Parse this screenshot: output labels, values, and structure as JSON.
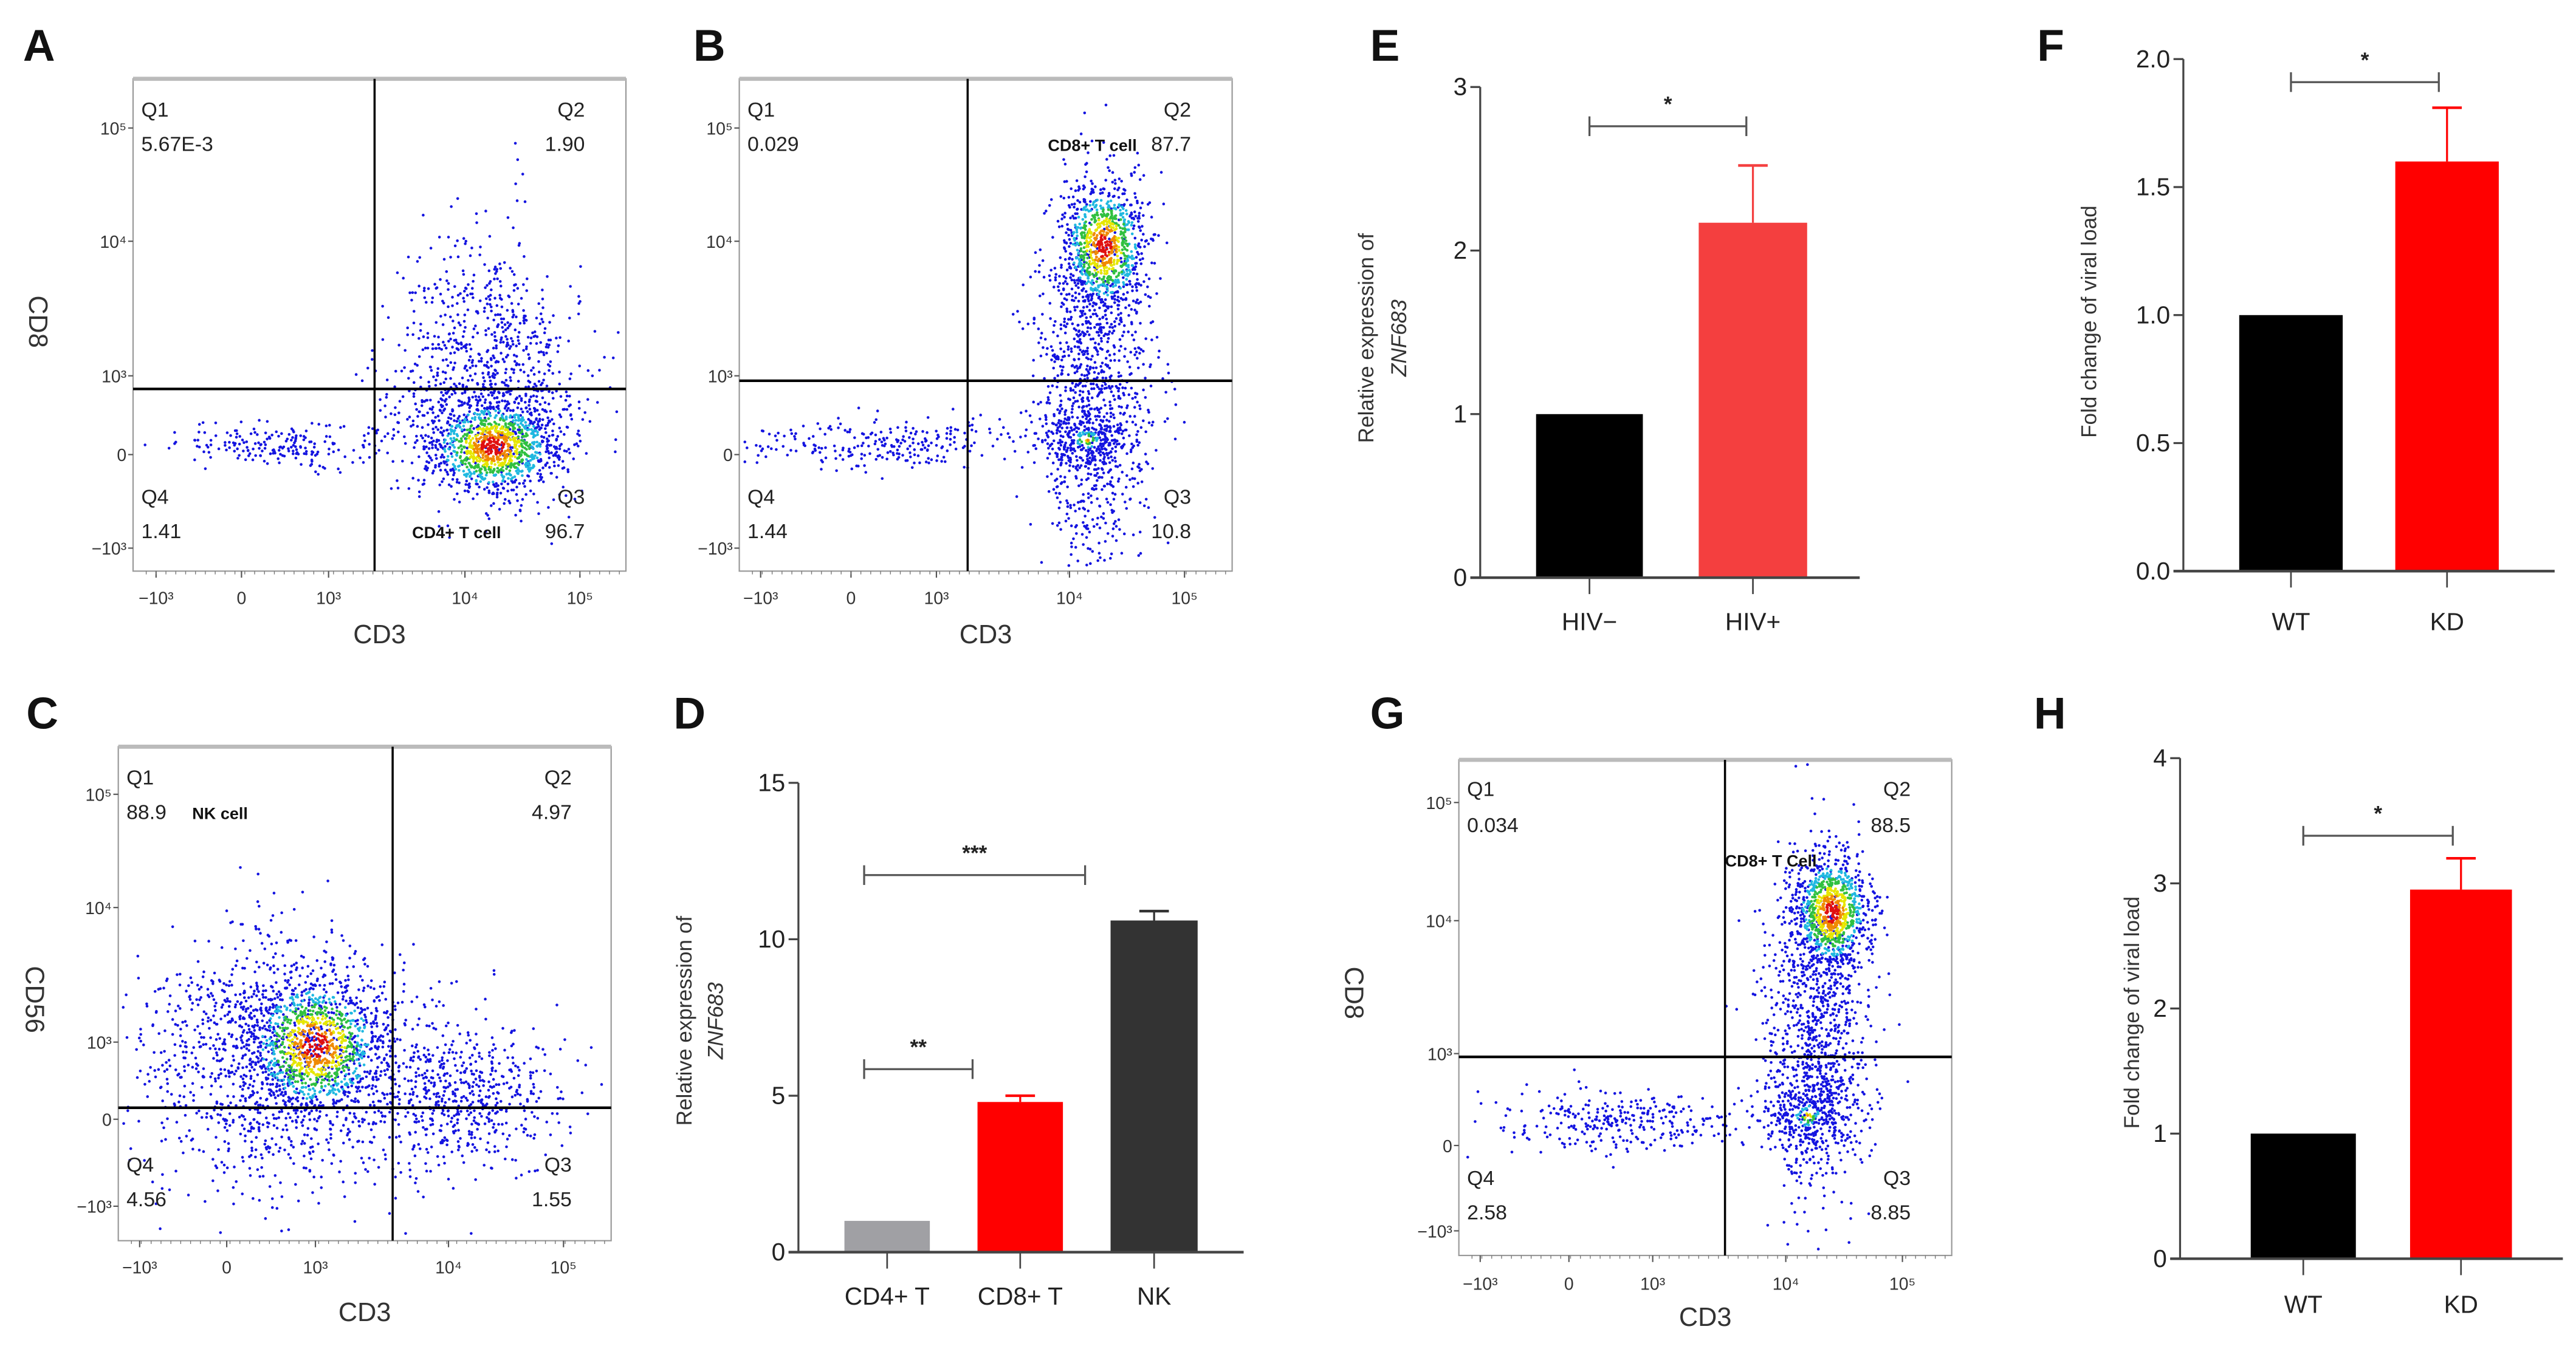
{
  "panel_letters": [
    "A",
    "B",
    "C",
    "D",
    "E",
    "F",
    "G",
    "H"
  ],
  "chart_data": [
    {
      "panel": "A",
      "type": "scatter",
      "xlabel": "CD3",
      "ylabel": "CD8",
      "x_ticks": [
        "−10³",
        "0",
        "10³",
        "10⁴",
        "10⁵"
      ],
      "y_ticks": [
        "10⁵",
        "10⁴",
        "10³",
        "0",
        "−10³"
      ],
      "quadrants": {
        "Q1": {
          "label": "Q1",
          "value": "5.67E-3"
        },
        "Q2": {
          "label": "Q2",
          "value": "1.90"
        },
        "Q3": {
          "label": "Q3",
          "value": "96.7"
        },
        "Q4": {
          "label": "Q4",
          "value": "1.41"
        }
      },
      "gate_label": "CD4+ T cell"
    },
    {
      "panel": "B",
      "type": "scatter",
      "xlabel": "CD3",
      "ylabel": "",
      "x_ticks": [
        "−10³",
        "0",
        "10³",
        "10⁴",
        "10⁵"
      ],
      "y_ticks": [
        "10⁵",
        "10⁴",
        "10³",
        "0",
        "−10³"
      ],
      "quadrants": {
        "Q1": {
          "label": "Q1",
          "value": "0.029"
        },
        "Q2": {
          "label": "Q2",
          "value": "87.7"
        },
        "Q3": {
          "label": "Q3",
          "value": "10.8"
        },
        "Q4": {
          "label": "Q4",
          "value": "1.44"
        }
      },
      "gate_label": "CD8+ T cell"
    },
    {
      "panel": "C",
      "type": "scatter",
      "xlabel": "CD3",
      "ylabel": "CD56",
      "x_ticks": [
        "−10³",
        "0",
        "10³",
        "10⁴",
        "10⁵"
      ],
      "y_ticks": [
        "10⁵",
        "10⁴",
        "10³",
        "0",
        "−10³"
      ],
      "quadrants": {
        "Q1": {
          "label": "Q1",
          "value": "88.9"
        },
        "Q2": {
          "label": "Q2",
          "value": "4.97"
        },
        "Q3": {
          "label": "Q3",
          "value": "1.55"
        },
        "Q4": {
          "label": "Q4",
          "value": "4.56"
        }
      },
      "gate_label": "NK cell"
    },
    {
      "panel": "G",
      "type": "scatter",
      "xlabel": "CD3",
      "ylabel": "CD8",
      "x_ticks": [
        "−10³",
        "0",
        "10³",
        "10⁴",
        "10⁵"
      ],
      "y_ticks": [
        "10⁵",
        "10⁴",
        "10³",
        "0",
        "−10³"
      ],
      "quadrants": {
        "Q1": {
          "label": "Q1",
          "value": "0.034"
        },
        "Q2": {
          "label": "Q2",
          "value": "88.5"
        },
        "Q3": {
          "label": "Q3",
          "value": "8.85"
        },
        "Q4": {
          "label": "Q4",
          "value": "2.58"
        }
      },
      "gate_label": "CD8+ T Cell"
    },
    {
      "panel": "D",
      "type": "bar",
      "categories": [
        "CD4+ T",
        "CD8+ T",
        "NK"
      ],
      "values": [
        1.0,
        4.8,
        10.6
      ],
      "errors": [
        0,
        0.2,
        0.3
      ],
      "colors": [
        "#a0a0a4",
        "#ff0000",
        "#333333"
      ],
      "ylabel": "Relative expression of",
      "ylabel_italic": "ZNF683",
      "ylim": [
        0,
        15
      ],
      "yticks": [
        "0",
        "5",
        "10",
        "15"
      ],
      "ytick_values": [
        0,
        5,
        10,
        15
      ],
      "significance": [
        {
          "from": 0,
          "to": 1,
          "label": "**",
          "y": 5.85
        },
        {
          "from": 0,
          "to": 2,
          "label": "***",
          "y": 12.05
        }
      ]
    },
    {
      "panel": "E",
      "type": "bar",
      "categories": [
        "HIV−",
        "HIV+"
      ],
      "values": [
        1.0,
        2.17
      ],
      "errors": [
        0,
        0.35
      ],
      "colors": [
        "#000000",
        "#f43f3f"
      ],
      "ylabel": "Relative expression of",
      "ylabel_italic": "ZNF683",
      "ylim": [
        0,
        3
      ],
      "yticks": [
        "0",
        "1",
        "2",
        "3"
      ],
      "ytick_values": [
        0,
        1,
        2,
        3
      ],
      "significance": [
        {
          "from": 0,
          "to": 1,
          "label": "*",
          "y": 2.76
        }
      ]
    },
    {
      "panel": "F",
      "type": "bar",
      "categories": [
        "WT",
        "KD"
      ],
      "values": [
        1.0,
        1.6
      ],
      "errors": [
        0,
        0.21
      ],
      "colors": [
        "#000000",
        "#ff0000"
      ],
      "ylabel": "Fold change of viral load",
      "ylabel_italic": "",
      "ylim": [
        0,
        2
      ],
      "yticks": [
        "0.0",
        "0.5",
        "1.0",
        "1.5",
        "2.0"
      ],
      "ytick_values": [
        0,
        0.5,
        1,
        1.5,
        2
      ],
      "significance": [
        {
          "from": 0,
          "to": 1,
          "label": "*",
          "y": 1.91
        }
      ]
    },
    {
      "panel": "H",
      "type": "bar",
      "categories": [
        "WT",
        "KD"
      ],
      "values": [
        1.0,
        2.95
      ],
      "errors": [
        0,
        0.25
      ],
      "colors": [
        "#000000",
        "#ff0000"
      ],
      "ylabel": "Fold change of viral load",
      "ylabel_italic": "",
      "ylim": [
        0,
        4
      ],
      "yticks": [
        "0",
        "1",
        "2",
        "3",
        "4"
      ],
      "ytick_values": [
        0,
        1,
        2,
        3,
        4
      ],
      "significance": [
        {
          "from": 0,
          "to": 1,
          "label": "*",
          "y": 3.38
        }
      ]
    }
  ]
}
